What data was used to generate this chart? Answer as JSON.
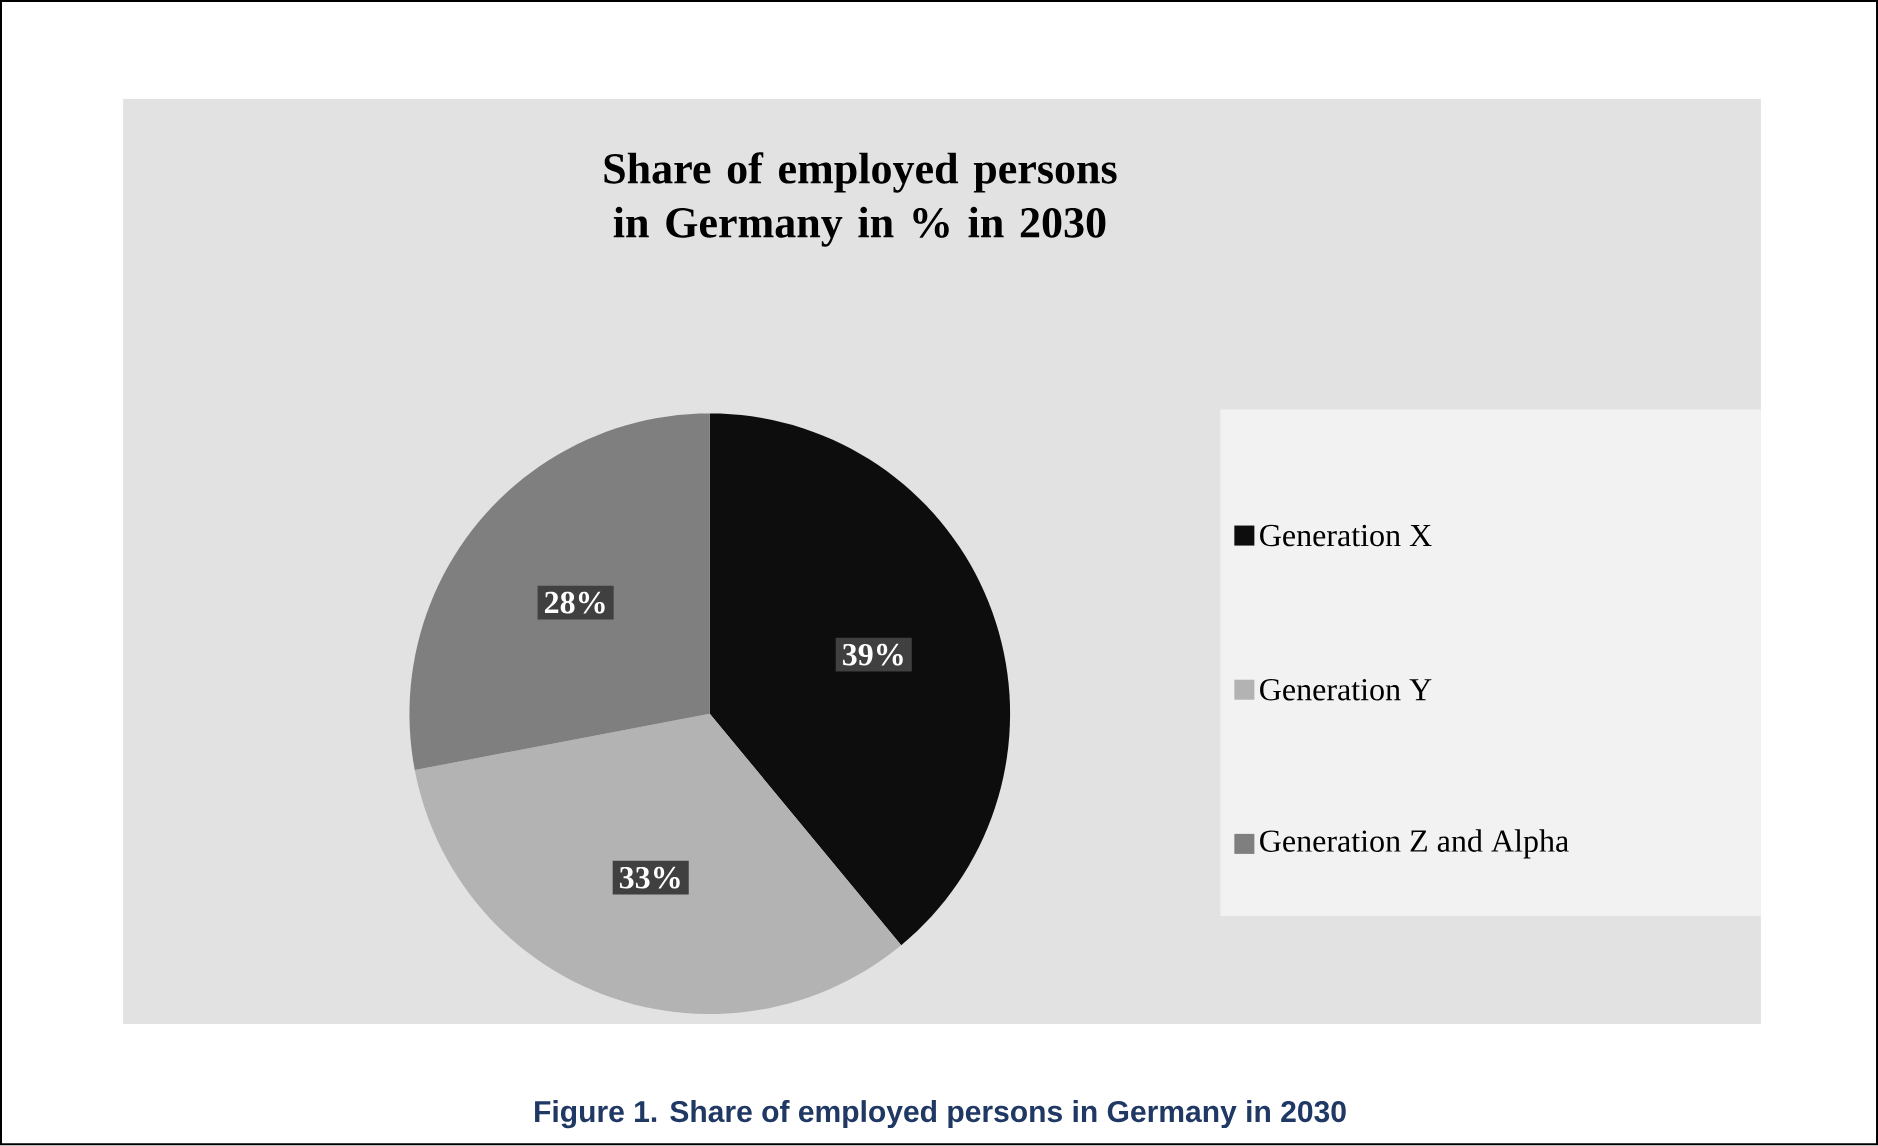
{
  "chart_data": {
    "type": "pie",
    "title": "Share of employed persons in Germany in % in 2030",
    "categories": [
      "Generation X",
      "Generation Y",
      "Generation Z and Alpha"
    ],
    "values": [
      39,
      33,
      28
    ],
    "colors": [
      "#0d0d0d",
      "#b3b3b3",
      "#7f7f7f"
    ],
    "value_labels": [
      "39%",
      "33%",
      "28%"
    ],
    "legend": "right",
    "annotations": [
      "Figure 1. Share of employed persons in Germany in 2030"
    ]
  }
}
